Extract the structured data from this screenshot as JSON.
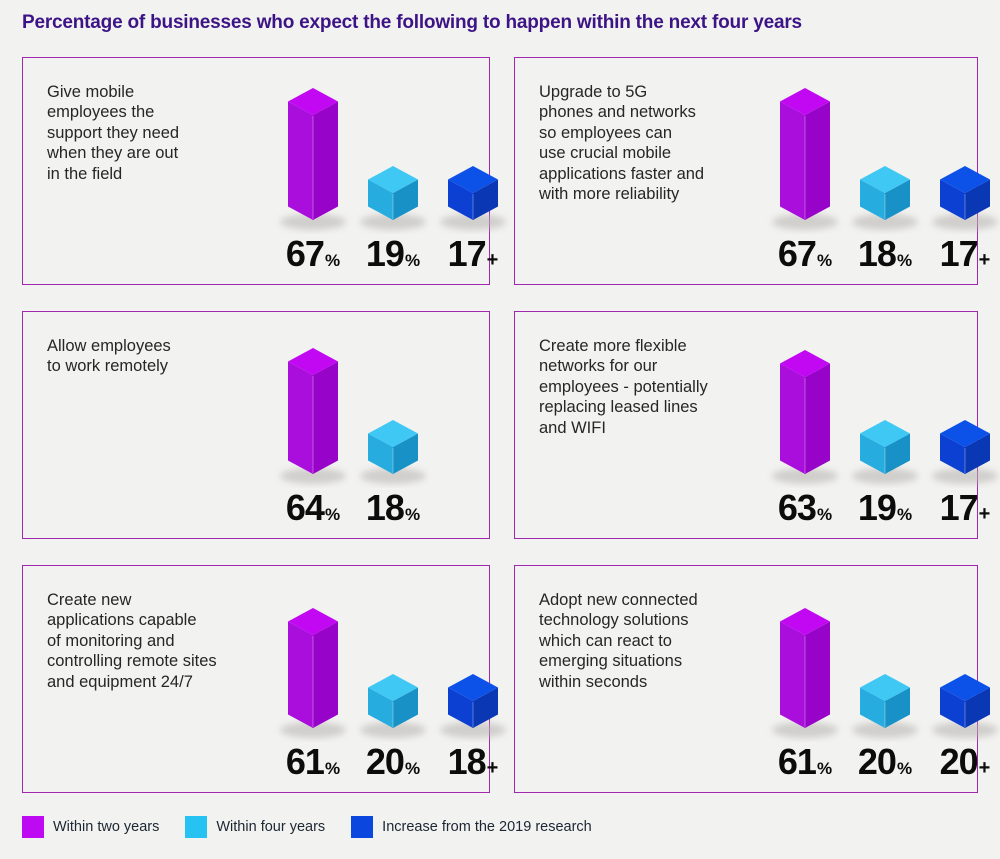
{
  "title": "Percentage of businesses who expect the following to happen within the next four years",
  "colors": {
    "background": "#f2f2f0",
    "panel_border": "#a127ae",
    "title_text": "#3d1486",
    "body_text": "#262626",
    "value_text": "#0c0c0c",
    "shadow": "#b9b7b4",
    "series": {
      "within_two_years": {
        "legend": "#be0af2",
        "top": "#c207f2",
        "left": "#a90edc",
        "right": "#9803c9"
      },
      "within_four_years": {
        "legend": "#26c2f2",
        "top": "#3fc8f3",
        "left": "#27ace0",
        "right": "#1891c7"
      },
      "increase_2019": {
        "legend": "#0b46df",
        "top": "#0d52e8",
        "left": "#0b40d2",
        "right": "#0a37b4"
      }
    }
  },
  "legend": {
    "items": [
      {
        "label": "Within two years",
        "series": "within_two_years"
      },
      {
        "label": "Within four years",
        "series": "within_four_years"
      },
      {
        "label": "Increase from the 2019 research",
        "series": "increase_2019"
      }
    ]
  },
  "panels": [
    {
      "description_lines": [
        "Give mobile",
        "employees the",
        "support they need",
        "when they are out",
        "in the field"
      ],
      "bars": [
        {
          "series": "within_two_years",
          "value": "67",
          "suffix": "%"
        },
        {
          "series": "within_four_years",
          "value": "19",
          "suffix": "%"
        },
        {
          "series": "increase_2019",
          "value": "17",
          "suffix": "+"
        }
      ]
    },
    {
      "description_lines": [
        "Upgrade to 5G",
        "phones and networks",
        "so employees can",
        "use crucial mobile",
        "applications faster and",
        "with more reliability"
      ],
      "bars": [
        {
          "series": "within_two_years",
          "value": "67",
          "suffix": "%"
        },
        {
          "series": "within_four_years",
          "value": "18",
          "suffix": "%"
        },
        {
          "series": "increase_2019",
          "value": "17",
          "suffix": "+"
        }
      ]
    },
    {
      "description_lines": [
        "Allow employees",
        "to work remotely"
      ],
      "bars": [
        {
          "series": "within_two_years",
          "value": "64",
          "suffix": "%"
        },
        {
          "series": "within_four_years",
          "value": "18",
          "suffix": "%"
        }
      ]
    },
    {
      "description_lines": [
        "Create more flexible",
        "networks for our",
        "employees - potentially",
        "replacing leased lines",
        "and WIFI"
      ],
      "bars": [
        {
          "series": "within_two_years",
          "value": "63",
          "suffix": "%"
        },
        {
          "series": "within_four_years",
          "value": "19",
          "suffix": "%"
        },
        {
          "series": "increase_2019",
          "value": "17",
          "suffix": "+"
        }
      ]
    },
    {
      "description_lines": [
        "Create new",
        "applications capable",
        "of monitoring and",
        "controlling remote sites",
        "and equipment 24/7"
      ],
      "bars": [
        {
          "series": "within_two_years",
          "value": "61",
          "suffix": "%"
        },
        {
          "series": "within_four_years",
          "value": "20",
          "suffix": "%"
        },
        {
          "series": "increase_2019",
          "value": "18",
          "suffix": "+"
        }
      ]
    },
    {
      "description_lines": [
        "Adopt new connected",
        "technology solutions",
        "which can react to",
        "emerging situations",
        "within seconds"
      ],
      "bars": [
        {
          "series": "within_two_years",
          "value": "61",
          "suffix": "%"
        },
        {
          "series": "within_four_years",
          "value": "20",
          "suffix": "%"
        },
        {
          "series": "increase_2019",
          "value": "20",
          "suffix": "+"
        }
      ]
    }
  ],
  "chart_data": {
    "type": "bar",
    "title": "Percentage of businesses who expect the following to happen within the next four years",
    "unit": "percent",
    "categories": [
      "Give mobile employees the support they need when they are out in the field",
      "Upgrade to 5G phones and networks so employees can use crucial mobile applications faster and with more reliability",
      "Allow employees to work remotely",
      "Create more flexible networks for our employees - potentially replacing leased lines and WIFI",
      "Create new applications capable of monitoring and controlling remote sites and equipment 24/7",
      "Adopt new connected technology solutions which can react to emerging situations within seconds"
    ],
    "series": [
      {
        "name": "Within two years",
        "suffix": "%",
        "values": [
          67,
          67,
          64,
          63,
          61,
          61
        ]
      },
      {
        "name": "Within four years",
        "suffix": "%",
        "values": [
          19,
          18,
          18,
          19,
          20,
          20
        ]
      },
      {
        "name": "Increase from the 2019 research",
        "suffix": "+",
        "values": [
          17,
          17,
          null,
          17,
          18,
          20
        ]
      }
    ],
    "legend_position": "bottom",
    "grid": false
  }
}
